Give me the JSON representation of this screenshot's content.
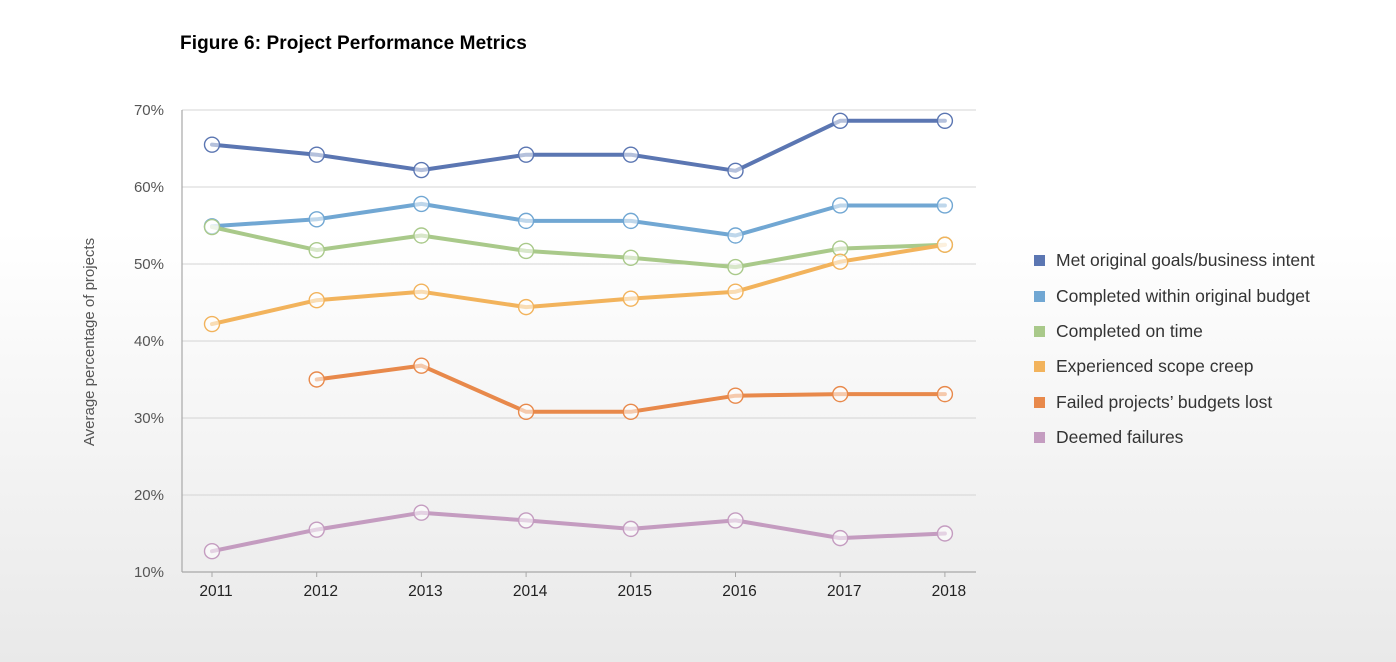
{
  "chart_data": {
    "type": "line",
    "title": "Figure 6: Project Performance Metrics",
    "xlabel": "",
    "ylabel": "Average percentage of projects",
    "x": [
      "2011",
      "2012",
      "2013",
      "2014",
      "2015",
      "2016",
      "2017",
      "2018"
    ],
    "ylim": [
      10,
      70
    ],
    "yticks": [
      "10%",
      "20%",
      "30%",
      "40%",
      "50%",
      "60%",
      "70%"
    ],
    "grid": true,
    "legend_position": "right",
    "series": [
      {
        "name": "Met original goals/business intent",
        "color": "#5b76b2",
        "values": [
          65.5,
          64.2,
          62.2,
          64.2,
          64.2,
          62.1,
          68.6,
          68.6
        ]
      },
      {
        "name": "Completed within original budget",
        "color": "#71a7d3",
        "values": [
          54.9,
          55.8,
          57.8,
          55.6,
          55.6,
          53.7,
          57.6,
          57.6
        ]
      },
      {
        "name": "Completed on time",
        "color": "#a9c98a",
        "values": [
          54.8,
          51.8,
          53.7,
          51.7,
          50.8,
          49.6,
          52.0,
          52.5
        ]
      },
      {
        "name": "Experienced scope creep",
        "color": "#f2b35c",
        "values": [
          42.2,
          45.3,
          46.4,
          44.4,
          45.5,
          46.4,
          50.3,
          52.5
        ]
      },
      {
        "name": "Failed projects’ budgets lost",
        "color": "#e8894b",
        "values": [
          null,
          35.0,
          36.8,
          30.8,
          30.8,
          32.9,
          33.1,
          33.1
        ]
      },
      {
        "name": "Deemed failures",
        "color": "#c49cc0",
        "values": [
          12.7,
          15.5,
          17.7,
          16.7,
          15.6,
          16.7,
          14.4,
          15.0
        ]
      }
    ]
  }
}
